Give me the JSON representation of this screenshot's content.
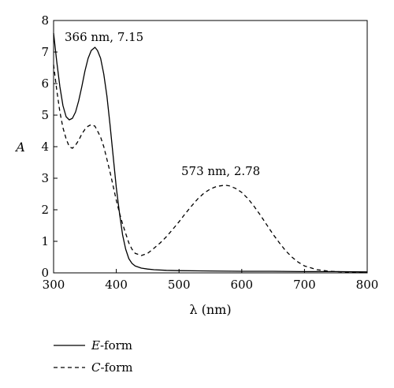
{
  "chart_data": {
    "type": "line",
    "title": "",
    "xlabel": "λ (nm)",
    "ylabel": "A",
    "xlim": [
      300,
      800
    ],
    "ylim": [
      0,
      8
    ],
    "xticks": [
      300,
      400,
      500,
      600,
      700,
      800
    ],
    "yticks": [
      0,
      1,
      2,
      3,
      4,
      5,
      6,
      7,
      8
    ],
    "grid": false,
    "legend_position": "bottom-left, below plot",
    "series": [
      {
        "name": "E-form",
        "line_style": "solid",
        "x": [
          300,
          305,
          310,
          315,
          320,
          325,
          330,
          335,
          340,
          345,
          350,
          355,
          360,
          366,
          370,
          375,
          380,
          385,
          390,
          395,
          400,
          405,
          410,
          415,
          420,
          425,
          430,
          440,
          450,
          460,
          480,
          500,
          550,
          600,
          650,
          700,
          750,
          800
        ],
        "y": [
          7.6,
          6.7,
          5.9,
          5.3,
          4.95,
          4.85,
          4.9,
          5.1,
          5.45,
          5.9,
          6.4,
          6.8,
          7.05,
          7.15,
          7.05,
          6.8,
          6.3,
          5.6,
          4.7,
          3.7,
          2.7,
          1.9,
          1.2,
          0.75,
          0.45,
          0.3,
          0.22,
          0.15,
          0.12,
          0.1,
          0.08,
          0.07,
          0.06,
          0.05,
          0.05,
          0.04,
          0.04,
          0.03
        ]
      },
      {
        "name": "C-form",
        "line_style": "dashed",
        "x": [
          300,
          305,
          310,
          315,
          320,
          325,
          330,
          335,
          340,
          345,
          350,
          355,
          360,
          366,
          370,
          375,
          380,
          385,
          390,
          395,
          400,
          405,
          410,
          415,
          420,
          425,
          430,
          440,
          450,
          460,
          470,
          480,
          490,
          500,
          510,
          520,
          530,
          540,
          550,
          560,
          573,
          580,
          590,
          600,
          610,
          620,
          630,
          640,
          650,
          660,
          670,
          680,
          690,
          700,
          720,
          740,
          760,
          780,
          800
        ],
        "y": [
          6.6,
          5.8,
          5.1,
          4.6,
          4.25,
          4.0,
          3.95,
          4.05,
          4.2,
          4.4,
          4.55,
          4.65,
          4.7,
          4.65,
          4.5,
          4.3,
          4.0,
          3.6,
          3.2,
          2.75,
          2.3,
          1.9,
          1.55,
          1.25,
          0.95,
          0.75,
          0.62,
          0.55,
          0.62,
          0.78,
          0.95,
          1.15,
          1.38,
          1.62,
          1.88,
          2.12,
          2.35,
          2.53,
          2.66,
          2.74,
          2.78,
          2.76,
          2.68,
          2.55,
          2.35,
          2.1,
          1.82,
          1.52,
          1.22,
          0.95,
          0.7,
          0.5,
          0.34,
          0.22,
          0.1,
          0.05,
          0.03,
          0.02,
          0.02
        ]
      }
    ],
    "annotations": [
      {
        "text": "366 nm, 7.15",
        "x": 366,
        "y": 7.15
      },
      {
        "text": "573 nm, 2.78",
        "x": 573,
        "y": 2.78
      }
    ]
  },
  "legend": {
    "items": [
      {
        "italic": "E",
        "rest": "-form",
        "line_style": "solid"
      },
      {
        "italic": "C",
        "rest": "-form",
        "line_style": "dashed"
      }
    ]
  },
  "colors": {
    "line": "#000000",
    "axes": "#000000",
    "background": "#ffffff"
  }
}
